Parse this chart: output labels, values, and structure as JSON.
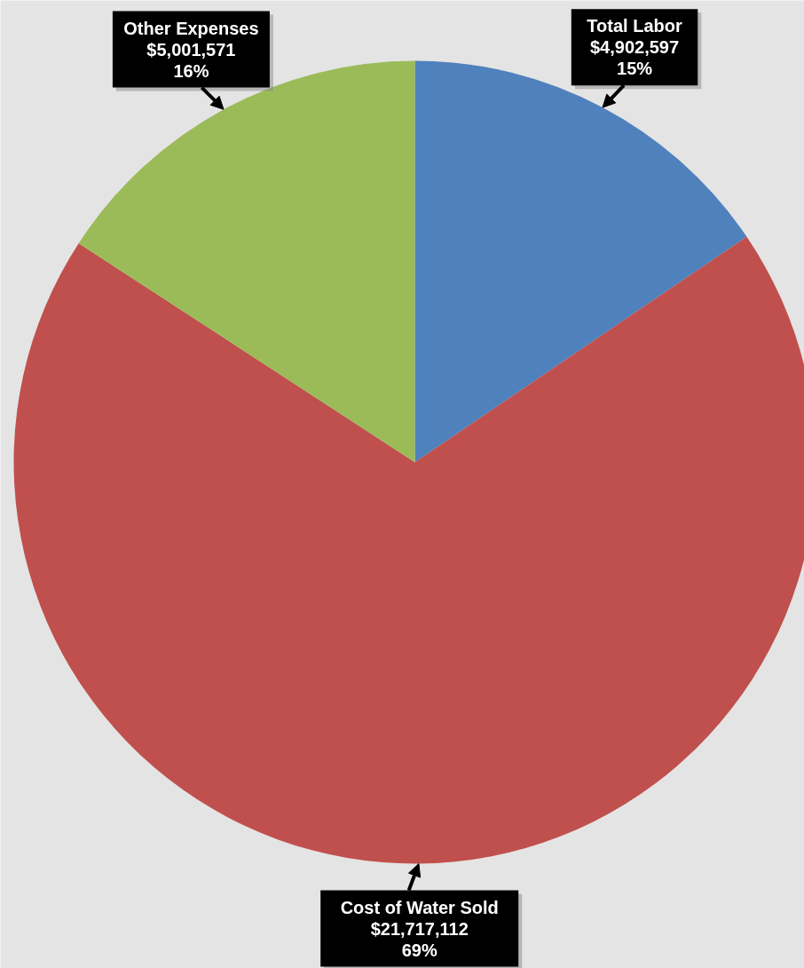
{
  "chart_data": {
    "type": "pie",
    "categories": [
      "Total Labor",
      "Cost of Water Sold",
      "Other Expenses"
    ],
    "values": [
      4902597,
      21717112,
      5001571
    ],
    "colors": [
      "#4f81bd",
      "#c0504d",
      "#9bbb59"
    ],
    "value_labels": [
      "$4,902,597\n15%",
      "$21,717,112\n69%",
      "$5,001,571\n16%"
    ]
  }
}
